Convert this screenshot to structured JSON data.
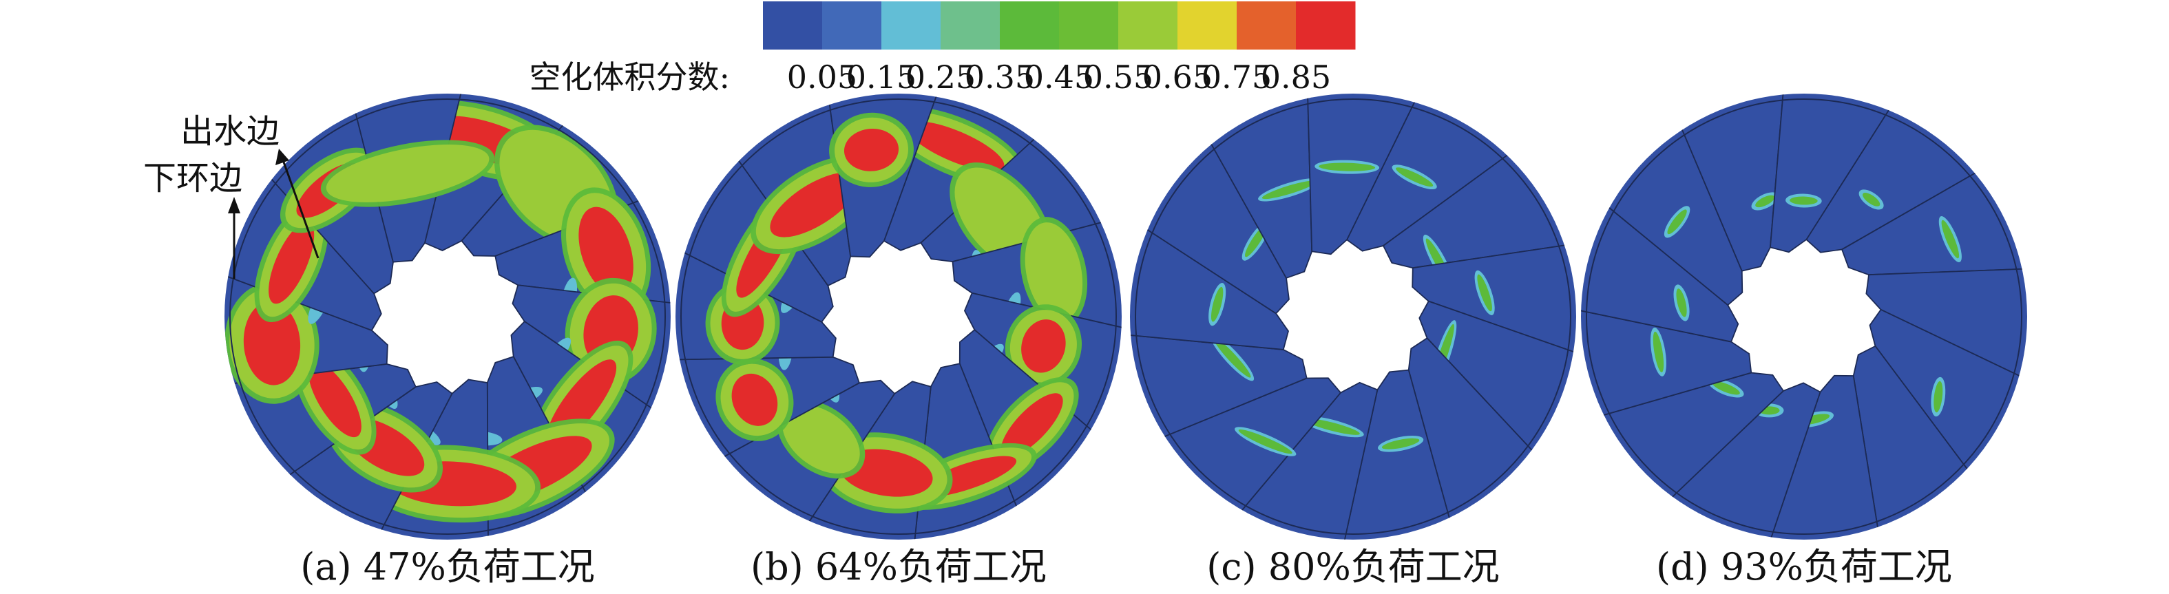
{
  "colorbar": {
    "label": "空化体积分数:",
    "colors": [
      "#3350a4",
      "#4169b8",
      "#62bed6",
      "#6ec08c",
      "#5cba3a",
      "#6bbd35",
      "#9acb38",
      "#e2d32e",
      "#e4612c",
      "#e32b2b"
    ],
    "ticks": [
      "0.05",
      "0.15",
      "0.25",
      "0.35",
      "0.45",
      "0.55",
      "0.65",
      "0.75",
      "0.85"
    ]
  },
  "annotations": {
    "outlet_edge": "出水边",
    "lower_ring_edge": "下环边"
  },
  "panels": [
    {
      "caption": "(a) 47%负荷工况",
      "cavitation_level": 0.47
    },
    {
      "caption": "(b) 64%负荷工况",
      "cavitation_level": 0.64
    },
    {
      "caption": "(c) 80%负荷工况",
      "cavitation_level": 0.8
    },
    {
      "caption": "(d) 93%负荷工况",
      "cavitation_level": 0.93
    }
  ],
  "colors": {
    "blade": "#3350a4",
    "edge": "#1c2a55",
    "hole": "#ffffff",
    "cav_high": "#e32b2b",
    "cav_mid": "#9acb38",
    "cav_low": "#62bed6",
    "cav_edge": "#5cba3a"
  },
  "blade_count": 13
}
